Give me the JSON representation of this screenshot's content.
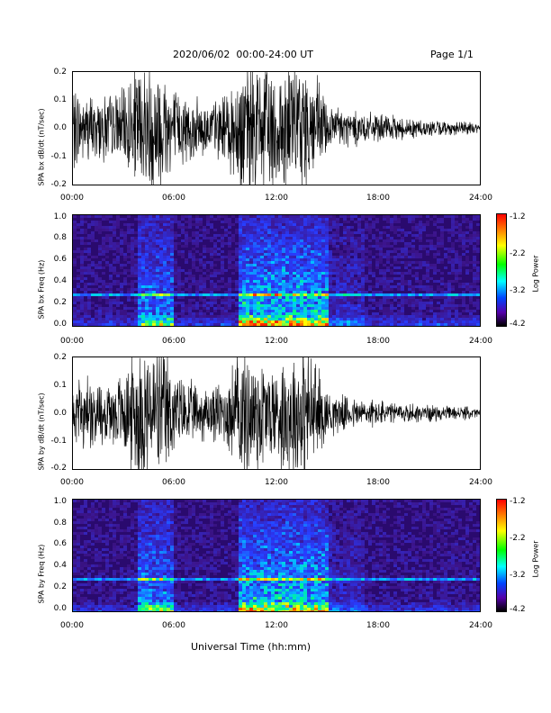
{
  "header": {
    "date_range": "2020/06/02  00:00-24:00 UT",
    "page": "Page 1/1"
  },
  "xlabel": "Universal Time (hh:mm)",
  "x_ticks": [
    "00:00",
    "06:00",
    "12:00",
    "18:00",
    "24:00"
  ],
  "colors": {
    "trace": "#000000",
    "spec_bg": "#2a0a6e"
  },
  "chart_data": [
    {
      "type": "line",
      "ylabel": "SPA bx dB/dt (nT/sec)",
      "ylim": [
        -0.2,
        0.2
      ],
      "y_ticks": [
        "0.2",
        "0.1",
        "0.0",
        "-0.1",
        "-0.2"
      ],
      "x_range_hours": [
        0,
        24
      ],
      "series": [
        {
          "x": [
            0,
            1,
            2,
            3,
            3.8,
            4.5,
            5,
            5.5,
            6,
            7,
            8,
            9,
            9.8,
            10.5,
            11,
            11.5,
            12,
            12.5,
            13,
            13.5,
            14,
            15,
            16,
            17,
            18,
            19,
            20,
            21,
            22,
            23,
            24
          ],
          "amplitude": [
            0.12,
            0.1,
            0.1,
            0.11,
            0.2,
            0.2,
            0.2,
            0.2,
            0.12,
            0.09,
            0.08,
            0.1,
            0.2,
            0.2,
            0.2,
            0.2,
            0.2,
            0.2,
            0.2,
            0.2,
            0.2,
            0.08,
            0.06,
            0.05,
            0.04,
            0.035,
            0.03,
            0.025,
            0.02,
            0.02,
            0.015
          ]
        }
      ]
    },
    {
      "type": "heatmap",
      "ylabel": "SPA bx Freq (Hz)",
      "ylim": [
        0.0,
        1.0
      ],
      "y_ticks": [
        "1.0",
        "0.8",
        "0.6",
        "0.4",
        "0.2",
        "0.0"
      ],
      "colorbar": {
        "label": "Log Power",
        "ticks": [
          "-1.2",
          "-2.2",
          "-3.2",
          "-4.2"
        ],
        "range": [
          -4.2,
          -1.2
        ]
      },
      "x_range_hours": [
        0,
        24
      ]
    },
    {
      "type": "line",
      "ylabel": "SPA by dB/dt (nT/sec)",
      "ylim": [
        -0.2,
        0.2
      ],
      "y_ticks": [
        "0.2",
        "0.1",
        "0.0",
        "-0.1",
        "-0.2"
      ],
      "x_range_hours": [
        0,
        24
      ],
      "series": [
        {
          "x": [
            0,
            1,
            2,
            3,
            3.8,
            4.5,
            5,
            5.5,
            6,
            7,
            8,
            9,
            9.8,
            10.5,
            11,
            11.5,
            12,
            12.5,
            13,
            13.5,
            14,
            15,
            16,
            17,
            18,
            19,
            20,
            21,
            22,
            23,
            24
          ],
          "amplitude": [
            0.09,
            0.1,
            0.1,
            0.12,
            0.2,
            0.2,
            0.2,
            0.2,
            0.12,
            0.09,
            0.08,
            0.1,
            0.2,
            0.2,
            0.2,
            0.15,
            0.15,
            0.18,
            0.2,
            0.2,
            0.2,
            0.07,
            0.05,
            0.045,
            0.04,
            0.03,
            0.03,
            0.025,
            0.02,
            0.02,
            0.015
          ]
        }
      ]
    },
    {
      "type": "heatmap",
      "ylabel": "SPA by Freq (Hz)",
      "ylim": [
        0.0,
        1.0
      ],
      "y_ticks": [
        "1.0",
        "0.8",
        "0.6",
        "0.4",
        "0.2",
        "0.0"
      ],
      "colorbar": {
        "label": "Log Power",
        "ticks": [
          "-1.2",
          "-2.2",
          "-3.2",
          "-4.2"
        ],
        "range": [
          -4.2,
          -1.2
        ]
      },
      "x_range_hours": [
        0,
        24
      ]
    }
  ]
}
